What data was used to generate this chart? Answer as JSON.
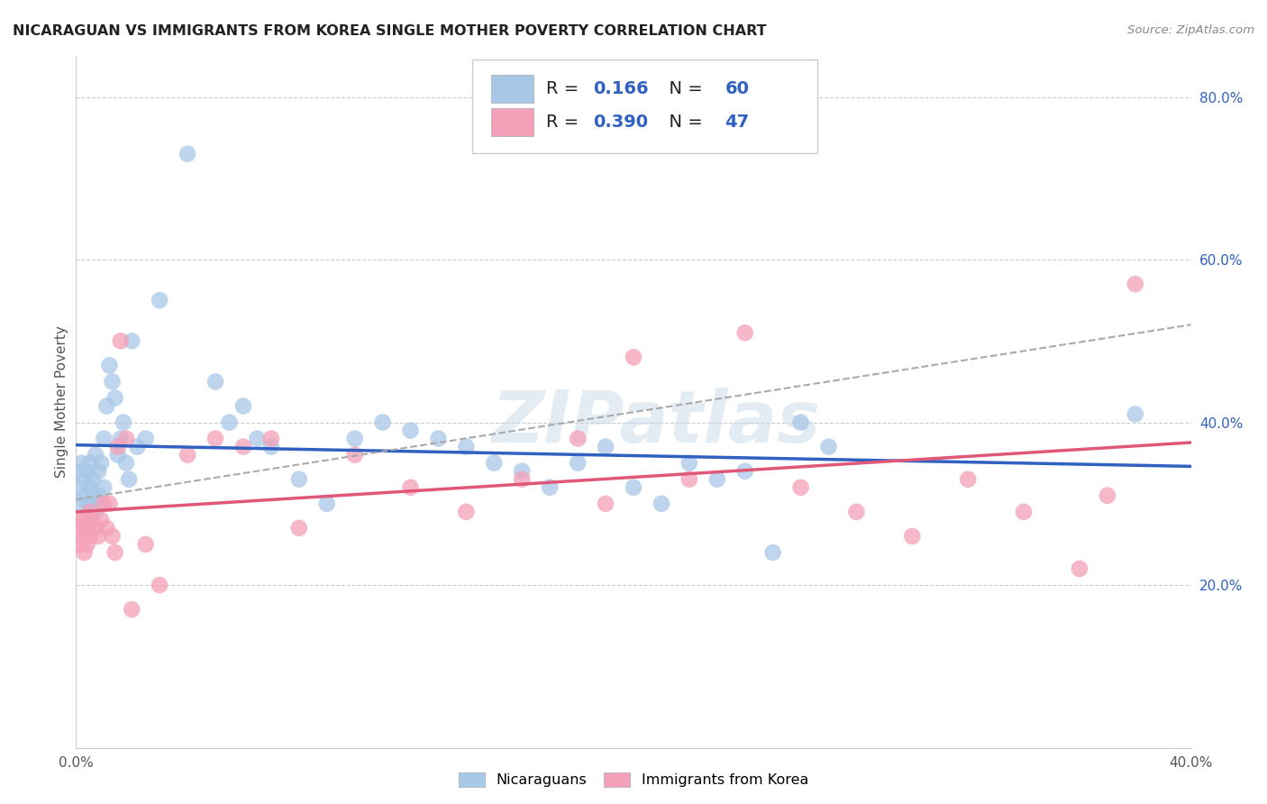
{
  "title": "NICARAGUAN VS IMMIGRANTS FROM KOREA SINGLE MOTHER POVERTY CORRELATION CHART",
  "source": "Source: ZipAtlas.com",
  "ylabel": "Single Mother Poverty",
  "xlim": [
    0.0,
    0.4
  ],
  "ylim": [
    0.0,
    0.85
  ],
  "xticks": [
    0.0,
    0.4
  ],
  "xtick_labels": [
    "0.0%",
    "40.0%"
  ],
  "yticks_right": [
    0.2,
    0.4,
    0.6,
    0.8
  ],
  "ytick_right_labels": [
    "20.0%",
    "40.0%",
    "60.0%",
    "80.0%"
  ],
  "legend_labels": [
    "Nicaraguans",
    "Immigrants from Korea"
  ],
  "R_nicaraguan": 0.166,
  "N_nicaraguan": 60,
  "R_korean": 0.39,
  "N_korean": 47,
  "blue_color": "#a8c8e8",
  "pink_color": "#f4a0b8",
  "blue_line_color": "#3060c0",
  "pink_line_color": "#e05878",
  "dashed_line_color": "#aaaaaa",
  "background_color": "#ffffff",
  "watermark": "ZIPatlas",
  "nic_x": [
    0.001,
    0.001,
    0.002,
    0.002,
    0.003,
    0.003,
    0.004,
    0.004,
    0.005,
    0.005,
    0.006,
    0.006,
    0.007,
    0.007,
    0.008,
    0.008,
    0.009,
    0.009,
    0.01,
    0.01,
    0.011,
    0.012,
    0.013,
    0.014,
    0.015,
    0.016,
    0.017,
    0.018,
    0.019,
    0.02,
    0.022,
    0.025,
    0.03,
    0.04,
    0.05,
    0.055,
    0.06,
    0.065,
    0.07,
    0.08,
    0.09,
    0.1,
    0.11,
    0.12,
    0.13,
    0.14,
    0.15,
    0.16,
    0.17,
    0.18,
    0.19,
    0.2,
    0.21,
    0.22,
    0.23,
    0.24,
    0.25,
    0.26,
    0.27,
    0.38
  ],
  "nic_y": [
    0.34,
    0.32,
    0.35,
    0.3,
    0.33,
    0.31,
    0.34,
    0.3,
    0.32,
    0.35,
    0.33,
    0.31,
    0.36,
    0.29,
    0.34,
    0.31,
    0.35,
    0.3,
    0.38,
    0.32,
    0.42,
    0.47,
    0.45,
    0.43,
    0.36,
    0.38,
    0.4,
    0.35,
    0.33,
    0.5,
    0.37,
    0.38,
    0.55,
    0.73,
    0.45,
    0.4,
    0.42,
    0.38,
    0.37,
    0.33,
    0.3,
    0.38,
    0.4,
    0.39,
    0.38,
    0.37,
    0.35,
    0.34,
    0.32,
    0.35,
    0.37,
    0.32,
    0.3,
    0.35,
    0.33,
    0.34,
    0.24,
    0.4,
    0.37,
    0.41
  ],
  "kor_x": [
    0.001,
    0.001,
    0.002,
    0.002,
    0.003,
    0.003,
    0.004,
    0.004,
    0.005,
    0.005,
    0.006,
    0.007,
    0.008,
    0.009,
    0.01,
    0.011,
    0.012,
    0.013,
    0.014,
    0.015,
    0.016,
    0.018,
    0.02,
    0.025,
    0.03,
    0.04,
    0.05,
    0.06,
    0.07,
    0.08,
    0.1,
    0.12,
    0.14,
    0.16,
    0.18,
    0.19,
    0.2,
    0.22,
    0.24,
    0.26,
    0.28,
    0.3,
    0.32,
    0.34,
    0.36,
    0.37,
    0.38
  ],
  "kor_y": [
    0.28,
    0.25,
    0.27,
    0.26,
    0.28,
    0.24,
    0.27,
    0.25,
    0.29,
    0.26,
    0.28,
    0.27,
    0.26,
    0.28,
    0.3,
    0.27,
    0.3,
    0.26,
    0.24,
    0.37,
    0.5,
    0.38,
    0.17,
    0.25,
    0.2,
    0.36,
    0.38,
    0.37,
    0.38,
    0.27,
    0.36,
    0.32,
    0.29,
    0.33,
    0.38,
    0.3,
    0.48,
    0.33,
    0.51,
    0.32,
    0.29,
    0.26,
    0.33,
    0.29,
    0.22,
    0.31,
    0.57
  ]
}
